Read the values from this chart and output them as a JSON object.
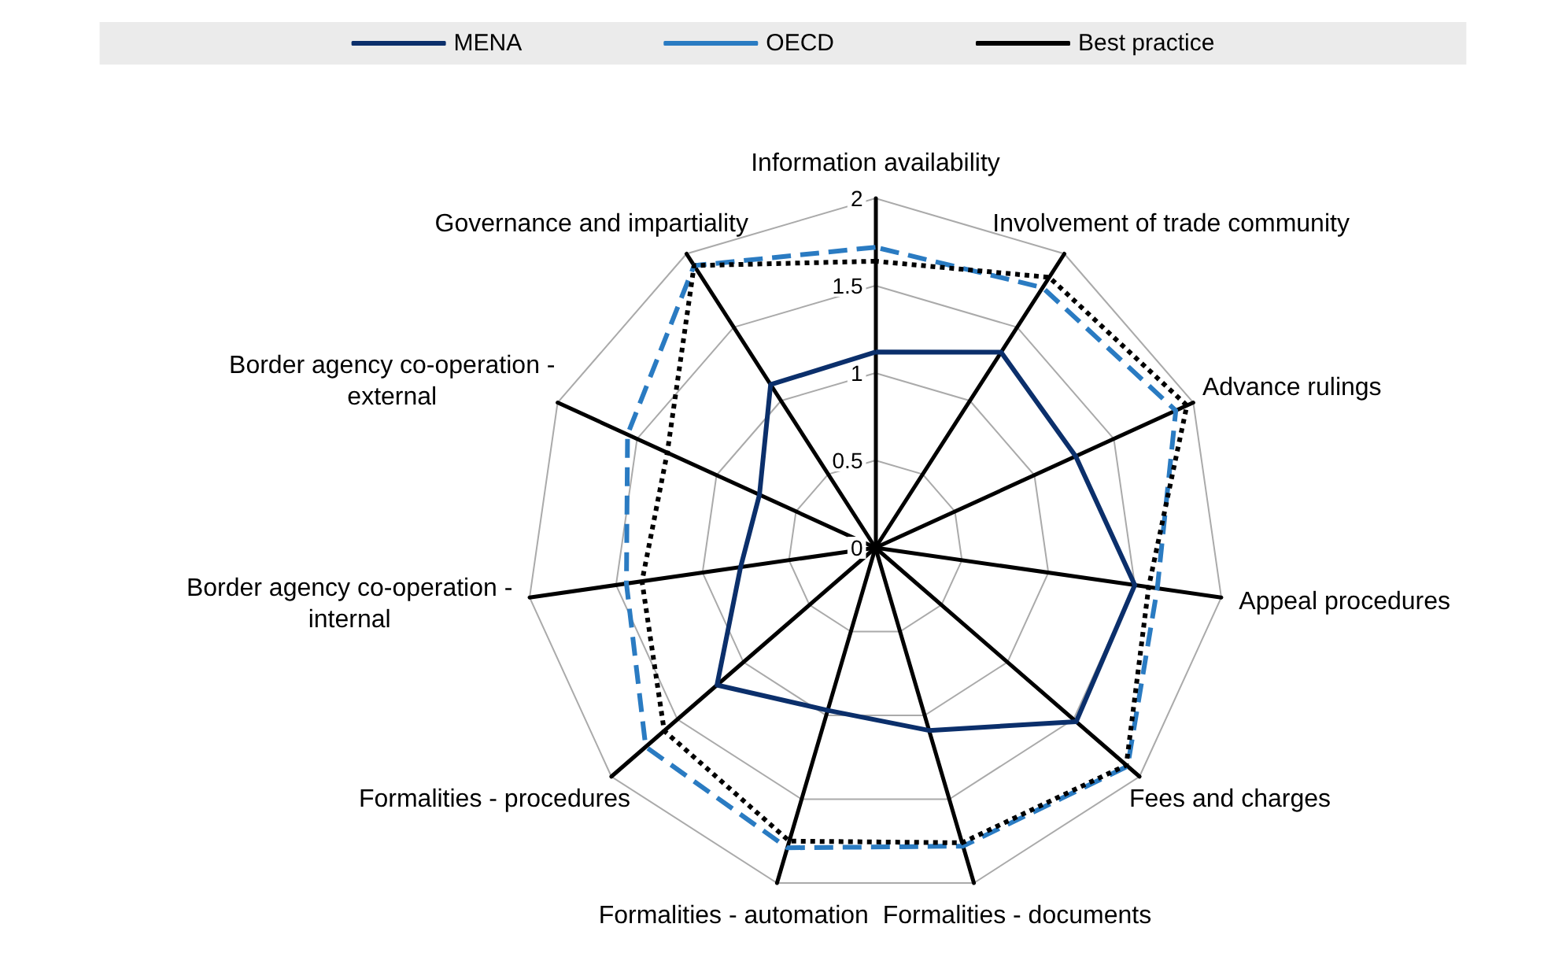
{
  "chart_data": {
    "type": "radar",
    "categories": [
      "Information availability",
      "Involvement of trade community",
      "Advance rulings",
      "Appeal procedures",
      "Fees and charges",
      "Formalities - documents",
      "Formalities - automation",
      "Formalities - procedures",
      "Border agency co-operation - internal",
      "Border agency co-operation - external",
      "Governance and impartiality"
    ],
    "ylim": [
      0,
      2
    ],
    "yticks": [
      0,
      0.5,
      1,
      1.5,
      2
    ],
    "grid": true,
    "legend": "top",
    "marker": "none",
    "series": [
      {
        "name": "MENA",
        "color": "#0b2f6b",
        "line_style": "solid",
        "values": [
          1.12,
          1.33,
          1.26,
          1.5,
          1.52,
          1.09,
          0.97,
          1.2,
          0.78,
          0.73,
          1.11
        ]
      },
      {
        "name": "OECD",
        "color": "#2a7bc2",
        "line_style": "dashed",
        "values": [
          1.72,
          1.77,
          1.89,
          1.63,
          1.91,
          1.78,
          1.79,
          1.74,
          1.44,
          1.56,
          1.92
        ]
      },
      {
        "name": "Best practice",
        "color": "#000000",
        "line_style": "dotted",
        "values": [
          1.64,
          1.84,
          1.96,
          1.58,
          1.9,
          1.76,
          1.75,
          1.6,
          1.35,
          1.31,
          1.92
        ]
      }
    ]
  }
}
